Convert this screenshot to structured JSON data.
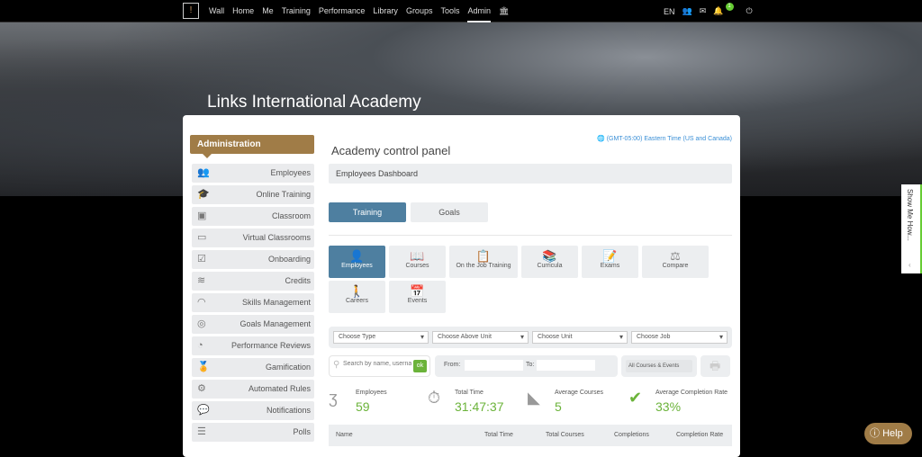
{
  "topbar": {
    "nav": [
      "Wall",
      "Home",
      "Me",
      "Training",
      "Performance",
      "Library",
      "Groups",
      "Tools",
      "Admin"
    ],
    "active": "Admin",
    "lang": "EN",
    "notification_count": "1"
  },
  "hero": {
    "title": "Links International Academy"
  },
  "sidebar": {
    "header": "Administration",
    "items": [
      {
        "label": "Employees",
        "icon": "employees-icon"
      },
      {
        "label": "Online Training",
        "icon": "graduation-cap-icon"
      },
      {
        "label": "Classroom",
        "icon": "classroom-icon"
      },
      {
        "label": "Virtual Classrooms",
        "icon": "virtual-classroom-icon"
      },
      {
        "label": "Onboarding",
        "icon": "checklist-icon"
      },
      {
        "label": "Credits",
        "icon": "layers-icon"
      },
      {
        "label": "Skills Management",
        "icon": "gauge-icon"
      },
      {
        "label": "Goals Management",
        "icon": "target-icon"
      },
      {
        "label": "Performance Reviews",
        "icon": "speedometer-icon"
      },
      {
        "label": "Gamification",
        "icon": "medal-icon"
      },
      {
        "label": "Automated Rules",
        "icon": "gear-icon"
      },
      {
        "label": "Notifications",
        "icon": "chat-icon"
      },
      {
        "label": "Polls",
        "icon": "bar-chart-icon"
      }
    ]
  },
  "main": {
    "timezone": "(GMT-05:00) Eastern Time (US and Canada)",
    "title": "Academy control panel",
    "dashboard": "Employees Dashboard",
    "tabs": [
      "Training",
      "Goals"
    ],
    "tiles": [
      {
        "label": "Employees",
        "icon": "user-icon"
      },
      {
        "label": "Courses",
        "icon": "book-icon"
      },
      {
        "label": "On the Job Training",
        "icon": "clipboard-icon"
      },
      {
        "label": "Curricula",
        "icon": "books-icon"
      },
      {
        "label": "Exams",
        "icon": "exam-icon"
      },
      {
        "label": "Compare",
        "icon": "scales-icon"
      },
      {
        "label": "Careers",
        "icon": "career-icon"
      },
      {
        "label": "Events",
        "icon": "calendar-icon"
      }
    ],
    "filters": [
      "Choose Type",
      "Choose Above Unit",
      "Choose Unit",
      "Choose Job"
    ],
    "search_placeholder": "Search by name, username",
    "ok": "ok",
    "from": "From:",
    "to": "To:",
    "course_filter": "All Courses & Events",
    "stats": [
      {
        "label": "Employees",
        "value": "59"
      },
      {
        "label": "Total Time",
        "value": "31:47:37"
      },
      {
        "label": "Average Courses",
        "value": "5"
      },
      {
        "label": "Average Completion Rate",
        "value": "33%"
      }
    ],
    "columns": [
      "Name",
      "Total Time",
      "Total Courses",
      "Completions",
      "Completion Rate"
    ]
  },
  "show_me_how": "Show Me How...",
  "help": "Help",
  "colors": {
    "accent": "#4e7fa0",
    "brand": "#a07c47",
    "value": "#6bb33a"
  }
}
